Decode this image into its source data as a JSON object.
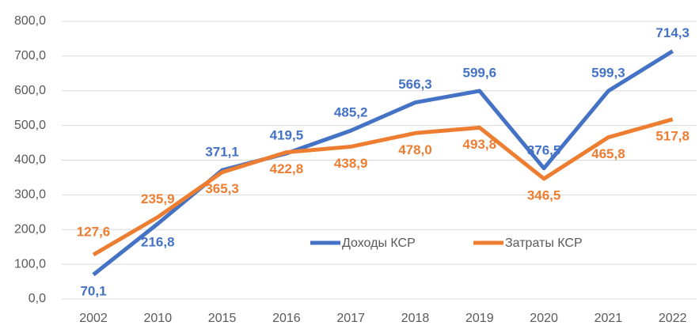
{
  "chart_data": {
    "type": "line",
    "categories": [
      "2002",
      "2010",
      "2015",
      "2016",
      "2017",
      "2018",
      "2019",
      "2020",
      "2021",
      "2022"
    ],
    "series": [
      {
        "name": "Доходы КСР",
        "color": "#4472c4",
        "values": [
          70.1,
          216.8,
          371.1,
          419.5,
          485.2,
          566.3,
          599.6,
          376.5,
          599.3,
          714.3
        ],
        "value_labels": [
          "70,1",
          "216,8",
          "371,1",
          "419,5",
          "485,2",
          "566,3",
          "599,6",
          "376,5",
          "599,3",
          "714,3"
        ]
      },
      {
        "name": "Затраты КСР",
        "color": "#ed7d31",
        "values": [
          127.6,
          235.9,
          365.3,
          422.8,
          438.9,
          478.0,
          493.8,
          346.5,
          465.8,
          517.8
        ],
        "value_labels": [
          "127,6",
          "235,9",
          "365,3",
          "422,8",
          "438,9",
          "478,0",
          "493,8",
          "346,5",
          "465,8",
          "517,8"
        ]
      }
    ],
    "ylim": [
      0,
      800
    ],
    "yticks": [
      {
        "value": 0,
        "label": "0,0"
      },
      {
        "value": 100,
        "label": "100,0"
      },
      {
        "value": 200,
        "label": "200,0"
      },
      {
        "value": 300,
        "label": "300,0"
      },
      {
        "value": 400,
        "label": "400,0"
      },
      {
        "value": 500,
        "label": "500,0"
      },
      {
        "value": 600,
        "label": "600,0"
      },
      {
        "value": 700,
        "label": "700,0"
      },
      {
        "value": 800,
        "label": "800,0"
      }
    ],
    "grid": true,
    "legend": "inside"
  }
}
